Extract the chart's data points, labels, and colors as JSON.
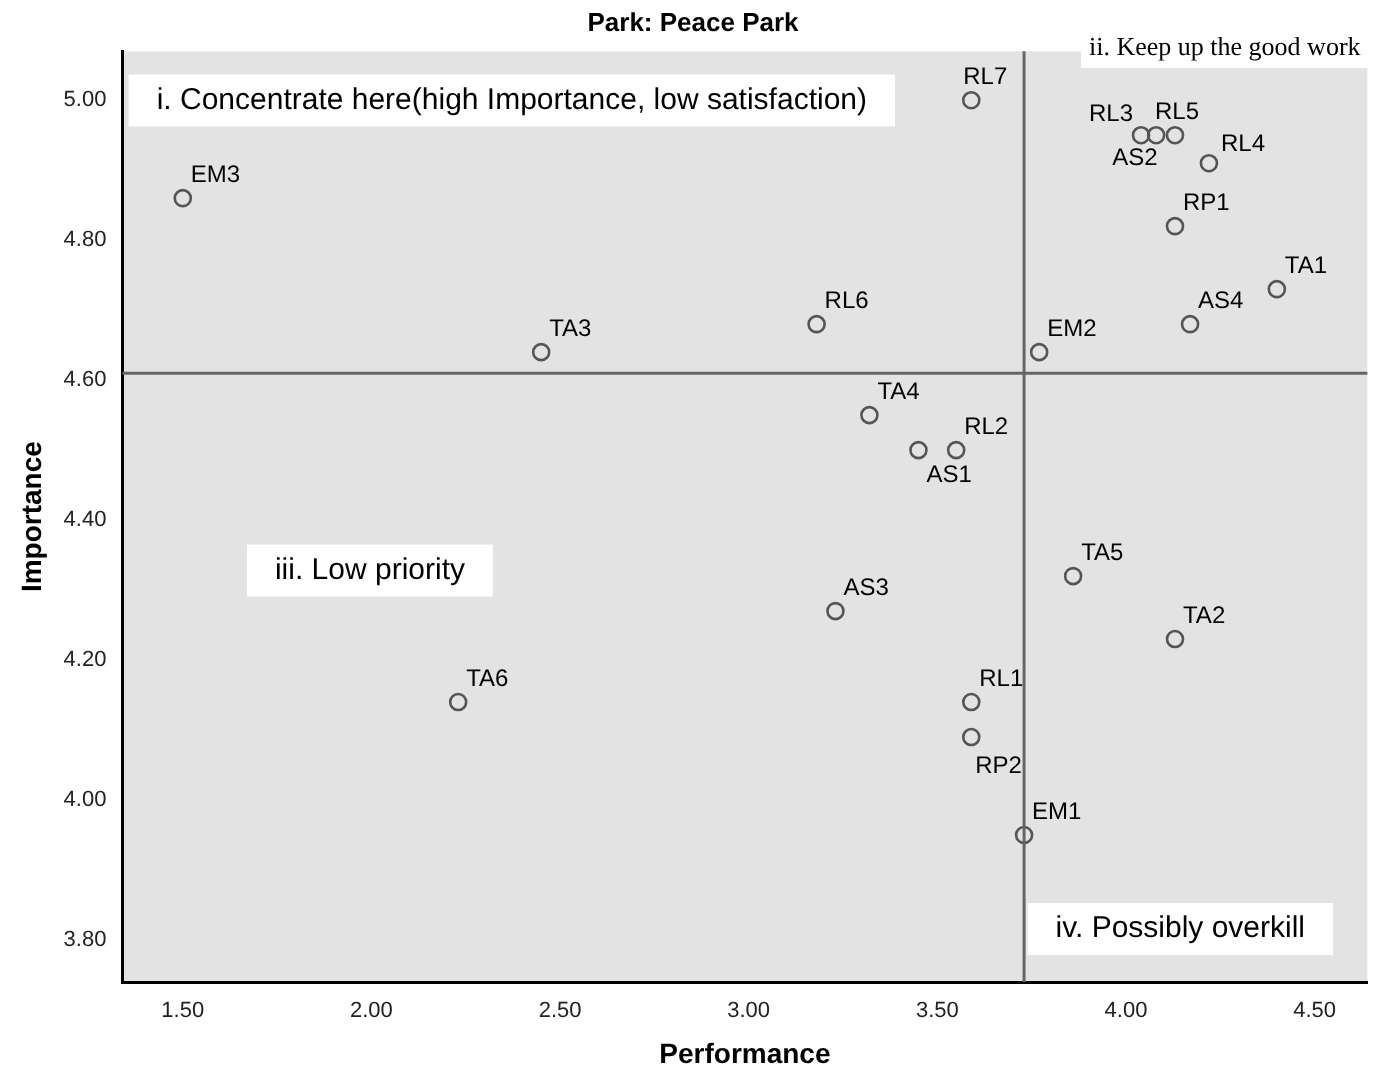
{
  "chart_data": {
    "type": "scatter",
    "title": "Park: Peace Park",
    "xlabel": "Performance",
    "ylabel": "Importance",
    "series": [
      {
        "name": "RL7",
        "color": "#555555",
        "x": [
          3.59
        ],
        "values": [
          5.0
        ]
      },
      {
        "name": "EM3",
        "color": "#555555",
        "x": [
          1.5
        ],
        "values": [
          4.86
        ]
      },
      {
        "name": "TA3",
        "color": "#555555",
        "x": [
          2.45
        ],
        "values": [
          4.64
        ]
      },
      {
        "name": "RL6",
        "color": "#555555",
        "x": [
          3.18
        ],
        "values": [
          4.68
        ]
      },
      {
        "name": "EM2",
        "color": "#555555",
        "x": [
          3.77
        ],
        "values": [
          4.64
        ]
      },
      {
        "name": "RL3",
        "color": "#555555",
        "x": [
          4.04
        ],
        "values": [
          4.95
        ]
      },
      {
        "name": "AS2",
        "color": "#555555",
        "x": [
          4.08
        ],
        "values": [
          4.95
        ]
      },
      {
        "name": "RL5",
        "color": "#555555",
        "x": [
          4.13
        ],
        "values": [
          4.95
        ]
      },
      {
        "name": "RL4",
        "color": "#555555",
        "x": [
          4.22
        ],
        "values": [
          4.91
        ]
      },
      {
        "name": "RP1",
        "color": "#555555",
        "x": [
          4.13
        ],
        "values": [
          4.82
        ]
      },
      {
        "name": "TA1",
        "color": "#555555",
        "x": [
          4.4
        ],
        "values": [
          4.73
        ]
      },
      {
        "name": "AS4",
        "color": "#555555",
        "x": [
          4.17
        ],
        "values": [
          4.68
        ]
      },
      {
        "name": "TA4",
        "color": "#555555",
        "x": [
          3.32
        ],
        "values": [
          4.55
        ]
      },
      {
        "name": "AS1",
        "color": "#555555",
        "x": [
          3.45
        ],
        "values": [
          4.5
        ]
      },
      {
        "name": "RL2",
        "color": "#555555",
        "x": [
          3.55
        ],
        "values": [
          4.5
        ]
      },
      {
        "name": "TA5",
        "color": "#555555",
        "x": [
          3.86
        ],
        "values": [
          4.32
        ]
      },
      {
        "name": "AS3",
        "color": "#555555",
        "x": [
          3.23
        ],
        "values": [
          4.27
        ]
      },
      {
        "name": "TA2",
        "color": "#555555",
        "x": [
          4.13
        ],
        "values": [
          4.23
        ]
      },
      {
        "name": "TA6",
        "color": "#555555",
        "x": [
          2.23
        ],
        "values": [
          4.14
        ]
      },
      {
        "name": "RL1",
        "color": "#555555",
        "x": [
          3.59
        ],
        "values": [
          4.14
        ]
      },
      {
        "name": "RP2",
        "color": "#555555",
        "x": [
          3.59
        ],
        "values": [
          4.09
        ]
      },
      {
        "name": "EM1",
        "color": "#555555",
        "x": [
          3.73
        ],
        "values": [
          3.95
        ]
      }
    ],
    "marker": "circle",
    "grid": false,
    "legend": false,
    "xlim": [
      1.34,
      4.64
    ],
    "xticks": [
      {
        "value": 1.5,
        "label": "1.50"
      },
      {
        "value": 2,
        "label": "2.00"
      },
      {
        "value": 2.5,
        "label": "2.50"
      },
      {
        "value": 3,
        "label": "3.00"
      },
      {
        "value": 3.5,
        "label": "3.50"
      },
      {
        "value": 4,
        "label": "4.00"
      },
      {
        "value": 4.5,
        "label": "4.50"
      }
    ],
    "ylim": [
      3.74,
      5.07
    ],
    "yticks": [
      {
        "value": 3.8,
        "label": "3.80"
      },
      {
        "value": 4,
        "label": "4.00"
      },
      {
        "value": 4.2,
        "label": "4.20"
      },
      {
        "value": 4.4,
        "label": "4.40"
      },
      {
        "value": 4.6,
        "label": "4.60"
      },
      {
        "value": 4.8,
        "label": "4.80"
      },
      {
        "value": 5,
        "label": "5.00"
      }
    ],
    "ref_lines": [
      {
        "axis": "x",
        "value": 3.73,
        "color": "#666666"
      },
      {
        "axis": "y",
        "value": 4.61,
        "color": "#666666"
      }
    ],
    "annotations": [
      "i. Concentrate here(high Importance, low satisfaction)",
      "ii. Keep up the good work",
      "iii. Low priority",
      "iv. Possibly overkill"
    ]
  }
}
